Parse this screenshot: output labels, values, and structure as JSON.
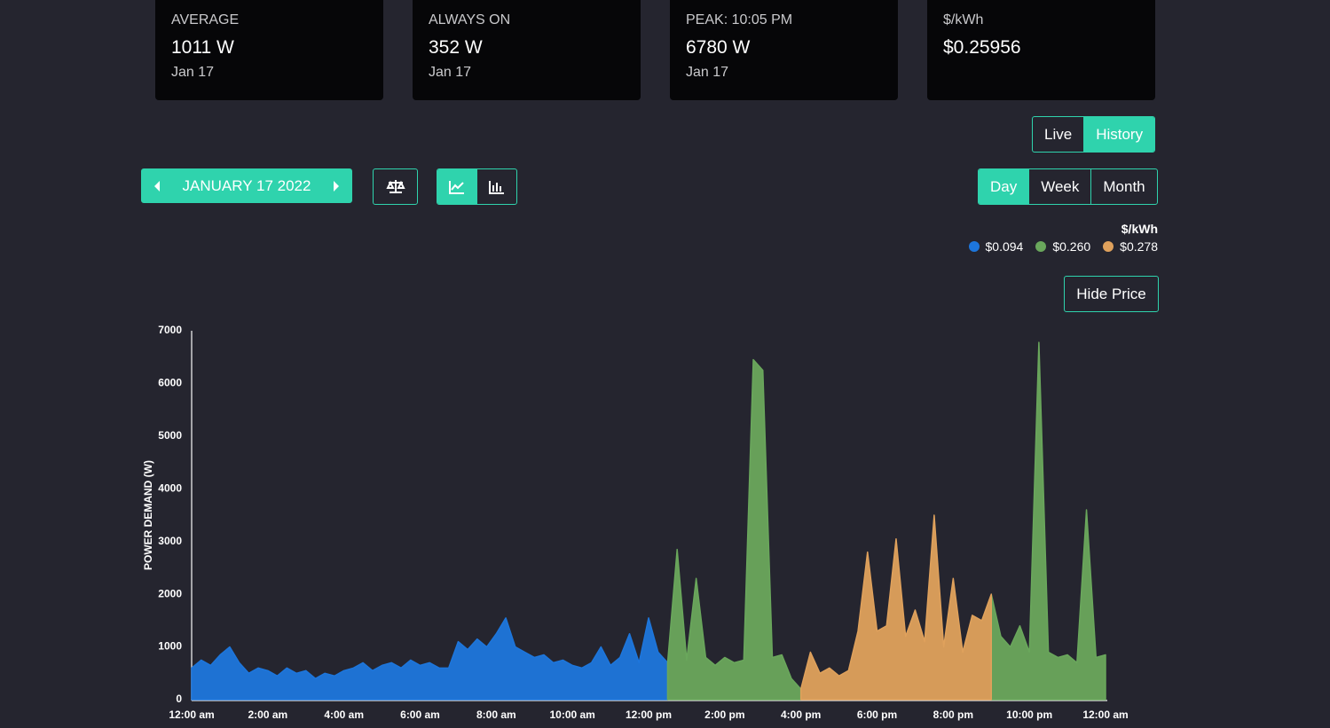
{
  "stats": [
    {
      "label": "AVERAGE",
      "value": "1011 W",
      "date": "Jan 17"
    },
    {
      "label": "ALWAYS ON",
      "value": "352 W",
      "date": "Jan 17"
    },
    {
      "label": "PEAK: 10:05 PM",
      "value": "6780 W",
      "date": "Jan 17"
    },
    {
      "label": "$/kWh",
      "value": "$0.25956"
    }
  ],
  "mode_buttons": [
    "Live",
    "History"
  ],
  "date_label": "JANUARY 17 2022",
  "range_buttons": [
    "Day",
    "Week",
    "Month"
  ],
  "hide_price": "Hide Price",
  "chart_data": {
    "type": "area",
    "y_label": "POWER DEMAND (W)",
    "legend_title": "$/kWh",
    "x": [
      0,
      0.25,
      0.5,
      0.75,
      1,
      1.25,
      1.5,
      1.75,
      2,
      2.25,
      2.5,
      2.75,
      3,
      3.25,
      3.5,
      3.75,
      4,
      4.25,
      4.5,
      4.75,
      5,
      5.25,
      5.5,
      5.75,
      6,
      6.25,
      6.5,
      6.75,
      7,
      7.25,
      7.5,
      7.75,
      8,
      8.25,
      8.5,
      8.75,
      9,
      9.25,
      9.5,
      9.75,
      10,
      10.25,
      10.5,
      10.75,
      11,
      11.25,
      11.5,
      11.75,
      12,
      12.25,
      12.5,
      12.75,
      13,
      13.25,
      13.5,
      13.75,
      14,
      14.25,
      14.5,
      14.75,
      15,
      15.25,
      15.5,
      15.75,
      16,
      16.25,
      16.5,
      16.75,
      17,
      17.25,
      17.5,
      17.75,
      18,
      18.25,
      18.5,
      18.75,
      19,
      19.25,
      19.5,
      19.75,
      20,
      20.25,
      20.5,
      20.75,
      21,
      21.25,
      21.5,
      21.75,
      22,
      22.25,
      22.5,
      22.75,
      23,
      23.25,
      23.5,
      23.75,
      24
    ],
    "xlim": [
      0,
      24
    ],
    "xticks": [
      {
        "value": 0,
        "label": "12:00 am"
      },
      {
        "value": 2,
        "label": "2:00 am"
      },
      {
        "value": 4,
        "label": "4:00 am"
      },
      {
        "value": 6,
        "label": "6:00 am"
      },
      {
        "value": 8,
        "label": "8:00 am"
      },
      {
        "value": 10,
        "label": "10:00 am"
      },
      {
        "value": 12,
        "label": "12:00 pm"
      },
      {
        "value": 14,
        "label": "2:00 pm"
      },
      {
        "value": 16,
        "label": "4:00 pm"
      },
      {
        "value": 18,
        "label": "6:00 pm"
      },
      {
        "value": 20,
        "label": "8:00 pm"
      },
      {
        "value": 22,
        "label": "10:00 pm"
      },
      {
        "value": 24,
        "label": "12:00 am"
      }
    ],
    "ylim": [
      0,
      7000
    ],
    "yticks": [
      0,
      1000,
      2000,
      3000,
      4000,
      5000,
      6000,
      7000
    ],
    "series": [
      {
        "name": "$0.094",
        "color": "#1d76dc",
        "values": [
          600,
          750,
          650,
          850,
          1000,
          700,
          500,
          600,
          550,
          450,
          600,
          500,
          550,
          400,
          500,
          450,
          550,
          600,
          700,
          550,
          650,
          700,
          600,
          750,
          650,
          700,
          600,
          600,
          1100,
          950,
          1150,
          1000,
          1250,
          1550,
          1000,
          900,
          800,
          850,
          700,
          750,
          650,
          600,
          700,
          1000,
          650,
          800,
          1250,
          700,
          1550,
          900,
          700,
          null,
          null,
          null,
          null,
          null,
          null,
          null,
          null,
          null,
          null,
          null,
          null,
          null,
          null,
          null,
          null,
          null,
          null,
          null,
          null,
          null,
          null,
          null,
          null,
          null,
          null,
          null,
          null,
          null,
          null,
          null,
          null,
          null,
          null,
          null,
          null,
          null,
          null,
          null,
          null,
          null,
          null,
          null,
          null,
          null,
          null
        ]
      },
      {
        "name": "$0.260",
        "color": "#6aa75c",
        "values": [
          null,
          null,
          null,
          null,
          null,
          null,
          null,
          null,
          null,
          null,
          null,
          null,
          null,
          null,
          null,
          null,
          null,
          null,
          null,
          null,
          null,
          null,
          null,
          null,
          null,
          null,
          null,
          null,
          null,
          null,
          null,
          null,
          null,
          null,
          null,
          null,
          null,
          null,
          null,
          null,
          null,
          null,
          null,
          null,
          null,
          null,
          null,
          null,
          null,
          null,
          700,
          2850,
          750,
          2300,
          800,
          650,
          800,
          700,
          750,
          6450,
          6250,
          800,
          850,
          400,
          200,
          null,
          null,
          null,
          null,
          null,
          null,
          null,
          null,
          null,
          null,
          null,
          null,
          null,
          null,
          null,
          null,
          null,
          null,
          null,
          2000,
          1200,
          1000,
          1400,
          900,
          6780,
          900,
          800,
          850,
          700,
          3600,
          800,
          850
        ]
      },
      {
        "name": "$0.278",
        "color": "#dfa15c",
        "values": [
          null,
          null,
          null,
          null,
          null,
          null,
          null,
          null,
          null,
          null,
          null,
          null,
          null,
          null,
          null,
          null,
          null,
          null,
          null,
          null,
          null,
          null,
          null,
          null,
          null,
          null,
          null,
          null,
          null,
          null,
          null,
          null,
          null,
          null,
          null,
          null,
          null,
          null,
          null,
          null,
          null,
          null,
          null,
          null,
          null,
          null,
          null,
          null,
          null,
          null,
          null,
          null,
          null,
          null,
          null,
          null,
          null,
          null,
          null,
          null,
          null,
          null,
          null,
          null,
          200,
          900,
          500,
          600,
          450,
          550,
          1300,
          2800,
          1300,
          1400,
          3050,
          1200,
          1700,
          1100,
          3500,
          1000,
          2300,
          900,
          1600,
          1500,
          2000,
          null,
          null,
          null,
          null,
          null,
          null,
          null,
          null,
          null,
          null,
          null,
          null
        ]
      }
    ]
  }
}
